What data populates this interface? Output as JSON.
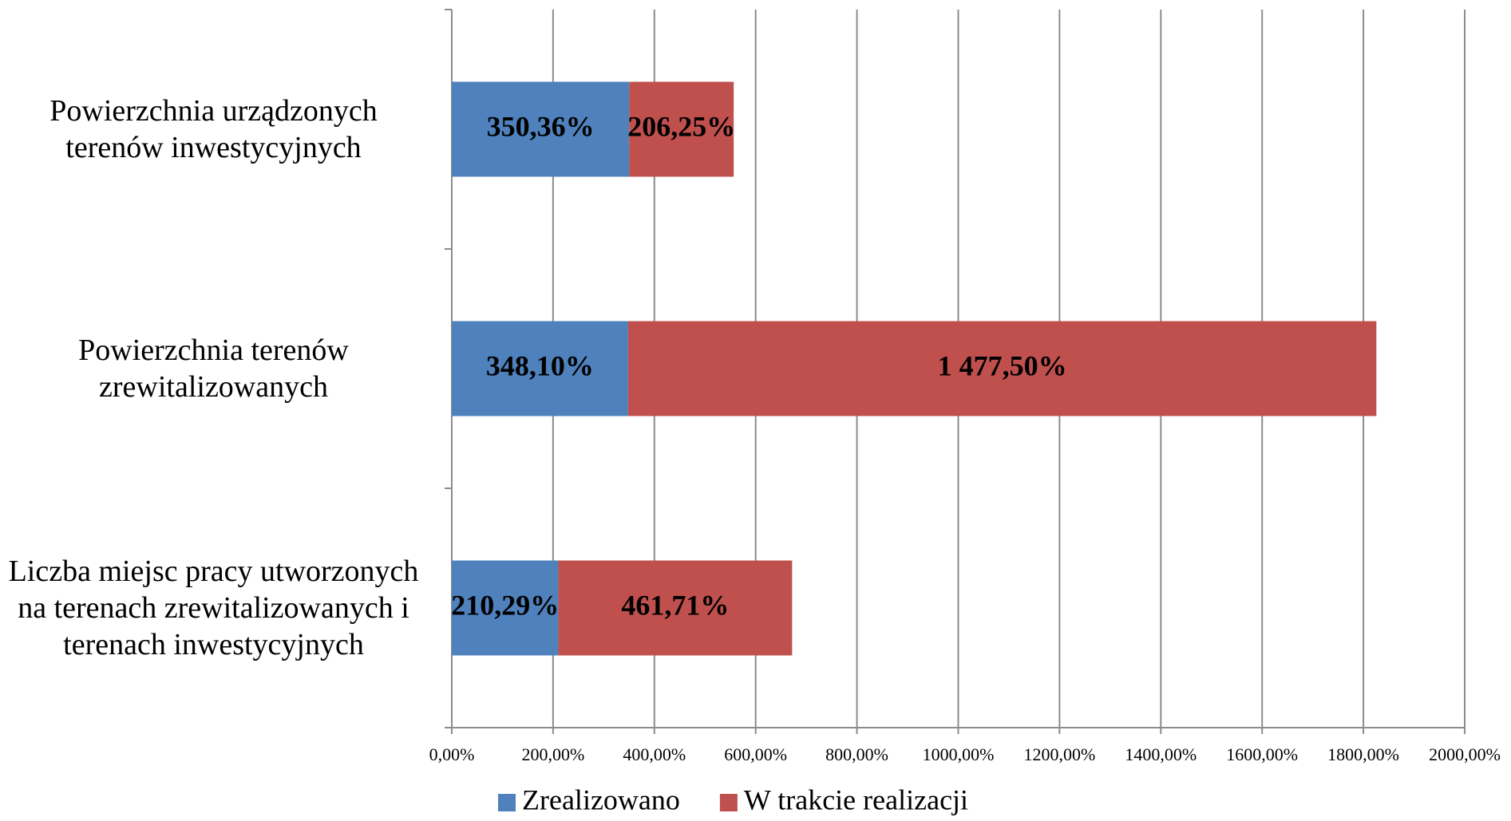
{
  "chart_data": {
    "type": "stacked-barh",
    "categories": [
      "Powierzchnia urządzonych terenów inwestycyjnych",
      "Powierzchnia terenów zrewitalizowanych",
      "Liczba miejsc pracy utworzonych na terenach zrewitalizowanych i terenach inwestycyjnych"
    ],
    "series": [
      {
        "name": "Zrealizowano",
        "color": "#4f81bd",
        "values": [
          350.36,
          348.1,
          210.29
        ],
        "value_labels": [
          "350,36%",
          "348,10%",
          "210,29%"
        ]
      },
      {
        "name": "W trakcie realizacji",
        "color": "#c0504d",
        "values": [
          206.25,
          1477.5,
          461.71
        ],
        "value_labels": [
          "206,25%",
          "1 477,50%",
          "461,71%"
        ]
      }
    ],
    "xlim": [
      0,
      2000
    ],
    "xticks": [
      {
        "value": 0,
        "label": "0,00%"
      },
      {
        "value": 200,
        "label": "200,00%"
      },
      {
        "value": 400,
        "label": "400,00%"
      },
      {
        "value": 600,
        "label": "600,00%"
      },
      {
        "value": 800,
        "label": "800,00%"
      },
      {
        "value": 1000,
        "label": "1000,00%"
      },
      {
        "value": 1200,
        "label": "1200,00%"
      },
      {
        "value": 1400,
        "label": "1400,00%"
      },
      {
        "value": 1600,
        "label": "1600,00%"
      },
      {
        "value": 1800,
        "label": "1800,00%"
      },
      {
        "value": 2000,
        "label": "2000,00%"
      }
    ],
    "grid": true,
    "legend": "bottom"
  }
}
